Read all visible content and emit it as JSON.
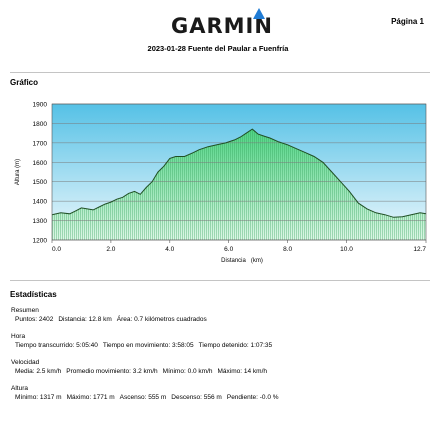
{
  "header": {
    "brand": "GARMIN",
    "page_label": "Página 1",
    "title": "2023-01-28 Fuente del Paular a Fuenfría"
  },
  "sections": {
    "chart_title": "Gráfico",
    "stats_title": "Estadísticas"
  },
  "colors": {
    "brand_triangle": "#1f7bd4",
    "sky_top": "#55c1e6",
    "sky_bottom": "#eef8fc",
    "fill_top": "#4fd484",
    "fill_bottom": "#ddf7e6",
    "line": "#1f4f24"
  },
  "chart_data": {
    "type": "area",
    "xlabel": "Distancia   (km)",
    "ylabel": "Altura (m)",
    "xlim": [
      0.0,
      12.7
    ],
    "ylim": [
      1200,
      1900
    ],
    "yticks": [
      1200,
      1300,
      1400,
      1500,
      1600,
      1700,
      1800,
      1900
    ],
    "xtick_labels": [
      "0.0",
      "2.0",
      "4.0",
      "6.0",
      "8.0",
      "10.0",
      "12.7"
    ],
    "xtick_values": [
      0.0,
      2.0,
      4.0,
      6.0,
      8.0,
      10.0,
      12.7
    ],
    "grid": true,
    "x": [
      0.0,
      0.3,
      0.6,
      0.8,
      1.0,
      1.2,
      1.4,
      1.6,
      1.8,
      2.0,
      2.2,
      2.4,
      2.6,
      2.8,
      3.0,
      3.2,
      3.4,
      3.6,
      3.8,
      4.0,
      4.2,
      4.5,
      4.8,
      5.0,
      5.3,
      5.6,
      5.9,
      6.2,
      6.4,
      6.6,
      6.8,
      7.0,
      7.2,
      7.4,
      7.7,
      8.0,
      8.3,
      8.6,
      8.9,
      9.2,
      9.5,
      9.8,
      10.1,
      10.4,
      10.7,
      11.0,
      11.3,
      11.6,
      11.9,
      12.2,
      12.5,
      12.7
    ],
    "y": [
      1330,
      1340,
      1335,
      1350,
      1365,
      1360,
      1355,
      1370,
      1385,
      1395,
      1410,
      1420,
      1440,
      1450,
      1435,
      1470,
      1500,
      1550,
      1580,
      1620,
      1630,
      1630,
      1650,
      1665,
      1680,
      1690,
      1700,
      1715,
      1730,
      1750,
      1771,
      1745,
      1735,
      1725,
      1705,
      1690,
      1670,
      1650,
      1630,
      1600,
      1550,
      1500,
      1450,
      1390,
      1360,
      1340,
      1330,
      1317,
      1320,
      1330,
      1340,
      1335
    ]
  },
  "stats": [
    {
      "title": "Resumen",
      "rows": [
        [
          "Puntos: 2402",
          "Distancia: 12.8 km",
          "Área: 0.7 kilómetros cuadrados"
        ]
      ]
    },
    {
      "title": "Hora",
      "rows": [
        [
          "Tiempo transcurrido: 5:05:40",
          "Tiempo en movimiento: 3:58:05",
          "Tiempo detenido: 1:07:35"
        ]
      ]
    },
    {
      "title": "Velocidad",
      "rows": [
        [
          "Media: 2.5 km/h",
          "Promedio movimiento: 3.2 km/h",
          "Mínimo: 0.0 km/h",
          "Máximo: 14 km/h"
        ]
      ]
    },
    {
      "title": "Altura",
      "rows": [
        [
          "Mínimo: 1317 m",
          "Máximo: 1771 m",
          "Ascenso: 555 m",
          "Descenso: 556 m",
          "Pendiente: -0.0 %"
        ]
      ]
    }
  ]
}
